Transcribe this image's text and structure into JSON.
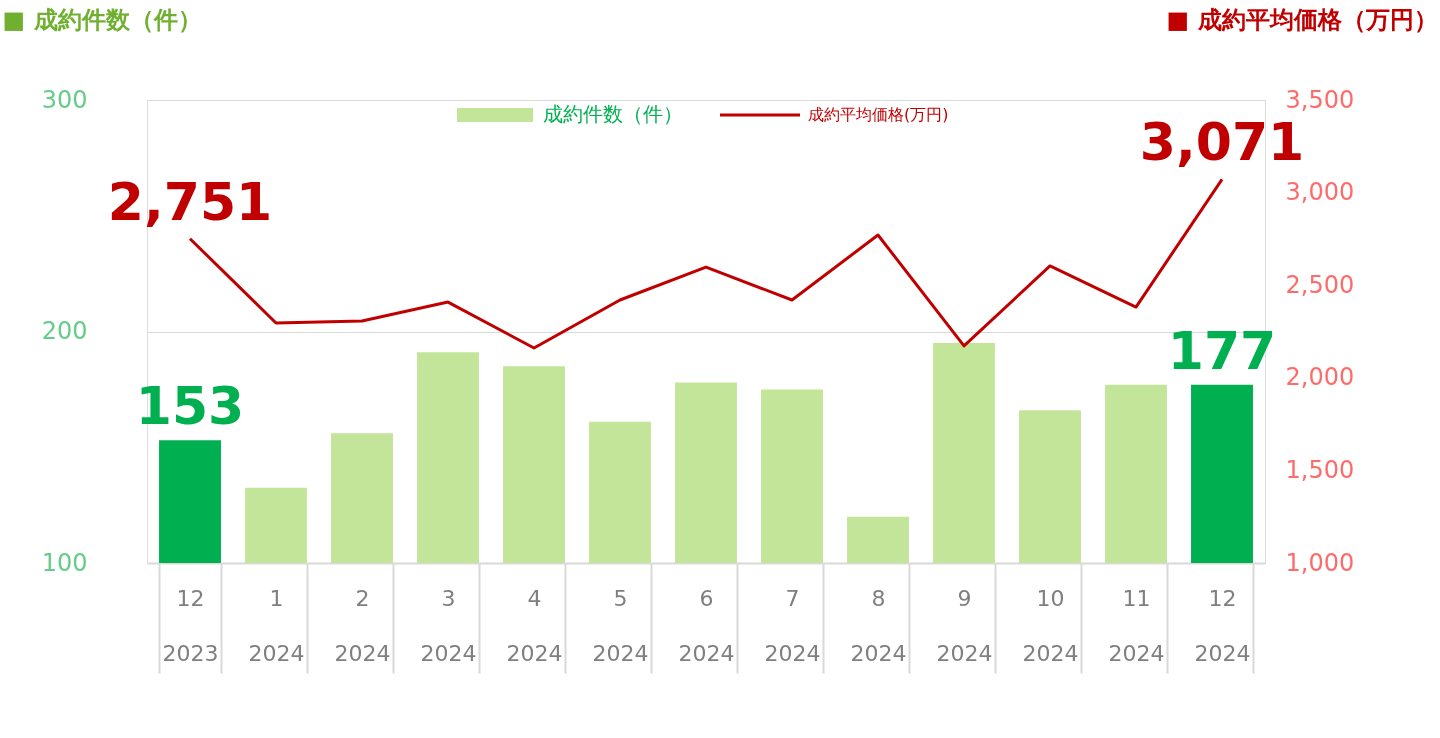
{
  "chart_data": {
    "type": "bar",
    "ylabel": "■ 成約件数（件）",
    "y2label": "■ 成約平均価格（万円）",
    "categories": [
      "12\n2023",
      "1\n2024",
      "2\n2024",
      "3\n2024",
      "4\n2024",
      "5\n2024",
      "6\n2024",
      "7\n2024",
      "8\n2024",
      "9\n2024",
      "10\n2024",
      "11\n2024",
      "12\n2024"
    ],
    "series": [
      {
        "name": "成約件数（件）",
        "color": "#c3e59a",
        "colors": [
          "#00b050",
          "#c3e59a",
          "#c3e59a",
          "#c3e59a",
          "#c3e59a",
          "#c3e59a",
          "#c3e59a",
          "#c3e59a",
          "#c3e59a",
          "#c3e59a",
          "#c3e59a",
          "#c3e59a",
          "#00b050"
        ],
        "values": [
          153,
          132.5,
          156,
          191,
          185,
          161,
          178,
          175,
          120,
          195,
          166,
          177,
          177
        ],
        "value_labels": [
          "153",
          null,
          null,
          null,
          null,
          null,
          null,
          null,
          null,
          null,
          null,
          null,
          "177"
        ]
      },
      {
        "name": "成約平均価格(万円)",
        "type": "line",
        "axis": "y2",
        "color": "#c00000",
        "values": [
          2751,
          2296,
          2307,
          2409,
          2161,
          2420,
          2598,
          2420,
          2771,
          2172,
          2604,
          2382,
          3071
        ],
        "value_labels": [
          "2,751",
          null,
          null,
          null,
          null,
          null,
          null,
          null,
          null,
          null,
          null,
          null,
          "3,071"
        ]
      }
    ],
    "ylim": [
      100,
      300
    ],
    "yticks": [
      100,
      200,
      300
    ],
    "y2lim": [
      1000,
      3500
    ],
    "y2ticks": [
      {
        "value": 1000,
        "label": "1,000"
      },
      {
        "value": 1500,
        "label": "1,500"
      },
      {
        "value": 2000,
        "label": "2,000"
      },
      {
        "value": 2500,
        "label": "2,500"
      },
      {
        "value": 3000,
        "label": "3,000"
      },
      {
        "value": 3500,
        "label": "3,500"
      }
    ],
    "grid": "y",
    "legend": "top"
  }
}
